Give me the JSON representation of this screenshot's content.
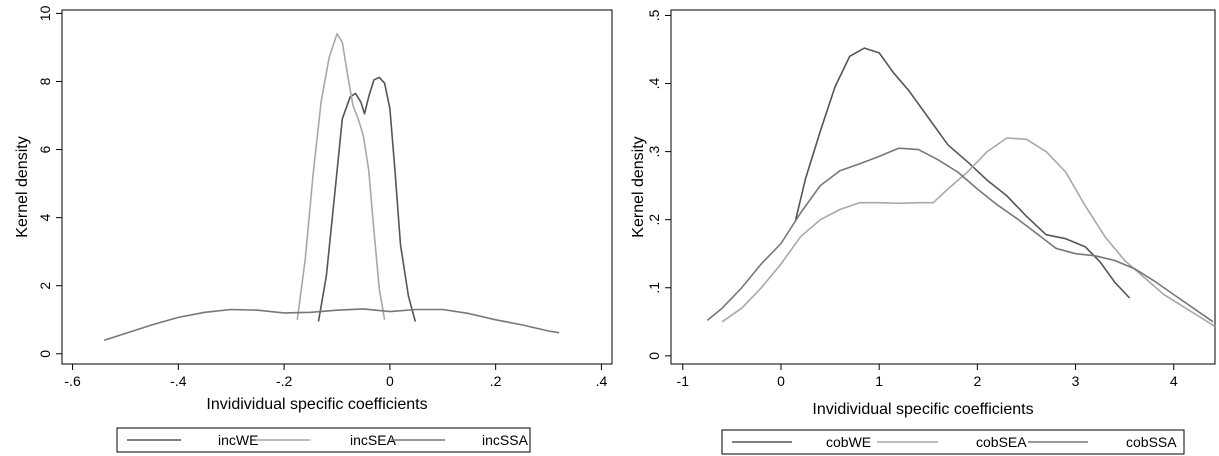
{
  "chart_data": [
    {
      "type": "line",
      "xlabel": "Invidividual specific coefficients",
      "ylabel": "Kernel density",
      "xlim": [
        -0.62,
        0.42
      ],
      "ylim": [
        -0.3,
        10.1
      ],
      "xticks": [
        "-.6",
        "-.4",
        "-.2",
        "0",
        ".2",
        ".4"
      ],
      "yticks": [
        "0",
        "2",
        "4",
        "6",
        "8",
        "10"
      ],
      "legend_position": "bottom",
      "grid": false,
      "series": [
        {
          "name": "incWE",
          "color": "#555555",
          "points": [
            [
              -0.135,
              0.95
            ],
            [
              -0.12,
              2.3
            ],
            [
              -0.105,
              4.6
            ],
            [
              -0.09,
              6.9
            ],
            [
              -0.075,
              7.55
            ],
            [
              -0.065,
              7.65
            ],
            [
              -0.055,
              7.4
            ],
            [
              -0.048,
              7.05
            ],
            [
              -0.04,
              7.55
            ],
            [
              -0.03,
              8.05
            ],
            [
              -0.02,
              8.12
            ],
            [
              -0.01,
              7.95
            ],
            [
              0.0,
              7.2
            ],
            [
              0.01,
              5.3
            ],
            [
              0.02,
              3.2
            ],
            [
              0.035,
              1.7
            ],
            [
              0.048,
              0.95
            ]
          ]
        },
        {
          "name": "incSEA",
          "color": "#a8a8a8",
          "points": [
            [
              -0.175,
              1.0
            ],
            [
              -0.16,
              2.8
            ],
            [
              -0.145,
              5.3
            ],
            [
              -0.13,
              7.4
            ],
            [
              -0.115,
              8.7
            ],
            [
              -0.1,
              9.4
            ],
            [
              -0.09,
              9.15
            ],
            [
              -0.08,
              8.2
            ],
            [
              -0.07,
              7.3
            ],
            [
              -0.06,
              6.9
            ],
            [
              -0.05,
              6.4
            ],
            [
              -0.04,
              5.4
            ],
            [
              -0.03,
              3.6
            ],
            [
              -0.02,
              1.9
            ],
            [
              -0.01,
              1.0
            ]
          ]
        },
        {
          "name": "incSSA",
          "color": "#777777",
          "points": [
            [
              -0.54,
              0.4
            ],
            [
              -0.5,
              0.6
            ],
            [
              -0.45,
              0.85
            ],
            [
              -0.4,
              1.07
            ],
            [
              -0.35,
              1.22
            ],
            [
              -0.3,
              1.3
            ],
            [
              -0.25,
              1.28
            ],
            [
              -0.2,
              1.2
            ],
            [
              -0.15,
              1.22
            ],
            [
              -0.1,
              1.28
            ],
            [
              -0.05,
              1.32
            ],
            [
              0.0,
              1.24
            ],
            [
              0.05,
              1.3
            ],
            [
              0.1,
              1.3
            ],
            [
              0.15,
              1.18
            ],
            [
              0.2,
              1.0
            ],
            [
              0.25,
              0.85
            ],
            [
              0.3,
              0.67
            ],
            [
              0.32,
              0.62
            ]
          ]
        }
      ]
    },
    {
      "type": "line",
      "xlabel": "Invidividual specific coefficients",
      "ylabel": "Kernel density",
      "xlim": [
        -1.12,
        4.42
      ],
      "ylim": [
        -0.012,
        0.508
      ],
      "xticks": [
        "-1",
        "0",
        "1",
        "2",
        "3",
        "4"
      ],
      "yticks": [
        "0",
        ".1",
        ".2",
        ".3",
        ".4",
        ".5"
      ],
      "legend_position": "bottom",
      "grid": false,
      "series": [
        {
          "name": "cobWE",
          "color": "#555555",
          "points": [
            [
              0.15,
              0.2
            ],
            [
              0.25,
              0.26
            ],
            [
              0.4,
              0.33
            ],
            [
              0.55,
              0.395
            ],
            [
              0.7,
              0.44
            ],
            [
              0.85,
              0.452
            ],
            [
              1.0,
              0.445
            ],
            [
              1.15,
              0.415
            ],
            [
              1.3,
              0.39
            ],
            [
              1.5,
              0.35
            ],
            [
              1.7,
              0.31
            ],
            [
              1.9,
              0.285
            ],
            [
              2.1,
              0.258
            ],
            [
              2.3,
              0.235
            ],
            [
              2.5,
              0.205
            ],
            [
              2.7,
              0.178
            ],
            [
              2.9,
              0.172
            ],
            [
              3.1,
              0.16
            ],
            [
              3.25,
              0.138
            ],
            [
              3.4,
              0.108
            ],
            [
              3.55,
              0.085
            ]
          ]
        },
        {
          "name": "cobSEA",
          "color": "#a8a8a8",
          "points": [
            [
              -0.6,
              0.05
            ],
            [
              -0.4,
              0.07
            ],
            [
              -0.2,
              0.1
            ],
            [
              0.0,
              0.135
            ],
            [
              0.2,
              0.175
            ],
            [
              0.4,
              0.2
            ],
            [
              0.6,
              0.215
            ],
            [
              0.8,
              0.225
            ],
            [
              1.0,
              0.225
            ],
            [
              1.2,
              0.224
            ],
            [
              1.4,
              0.225
            ],
            [
              1.55,
              0.225
            ],
            [
              1.7,
              0.245
            ],
            [
              1.9,
              0.27
            ],
            [
              2.1,
              0.3
            ],
            [
              2.3,
              0.32
            ],
            [
              2.5,
              0.318
            ],
            [
              2.7,
              0.3
            ],
            [
              2.9,
              0.27
            ],
            [
              3.1,
              0.22
            ],
            [
              3.3,
              0.175
            ],
            [
              3.5,
              0.14
            ],
            [
              3.7,
              0.115
            ],
            [
              3.9,
              0.09
            ],
            [
              4.1,
              0.072
            ],
            [
              4.3,
              0.054
            ],
            [
              4.42,
              0.043
            ]
          ]
        },
        {
          "name": "cobSSA",
          "color": "#777777",
          "points": [
            [
              -0.75,
              0.052
            ],
            [
              -0.6,
              0.07
            ],
            [
              -0.4,
              0.1
            ],
            [
              -0.2,
              0.135
            ],
            [
              0.0,
              0.165
            ],
            [
              0.2,
              0.21
            ],
            [
              0.4,
              0.25
            ],
            [
              0.6,
              0.272
            ],
            [
              0.8,
              0.282
            ],
            [
              1.0,
              0.293
            ],
            [
              1.2,
              0.305
            ],
            [
              1.4,
              0.303
            ],
            [
              1.6,
              0.288
            ],
            [
              1.8,
              0.27
            ],
            [
              2.0,
              0.245
            ],
            [
              2.2,
              0.222
            ],
            [
              2.4,
              0.202
            ],
            [
              2.6,
              0.18
            ],
            [
              2.8,
              0.158
            ],
            [
              3.0,
              0.15
            ],
            [
              3.2,
              0.147
            ],
            [
              3.4,
              0.14
            ],
            [
              3.6,
              0.128
            ],
            [
              3.8,
              0.11
            ],
            [
              4.0,
              0.09
            ],
            [
              4.2,
              0.07
            ],
            [
              4.4,
              0.05
            ]
          ]
        }
      ]
    }
  ]
}
